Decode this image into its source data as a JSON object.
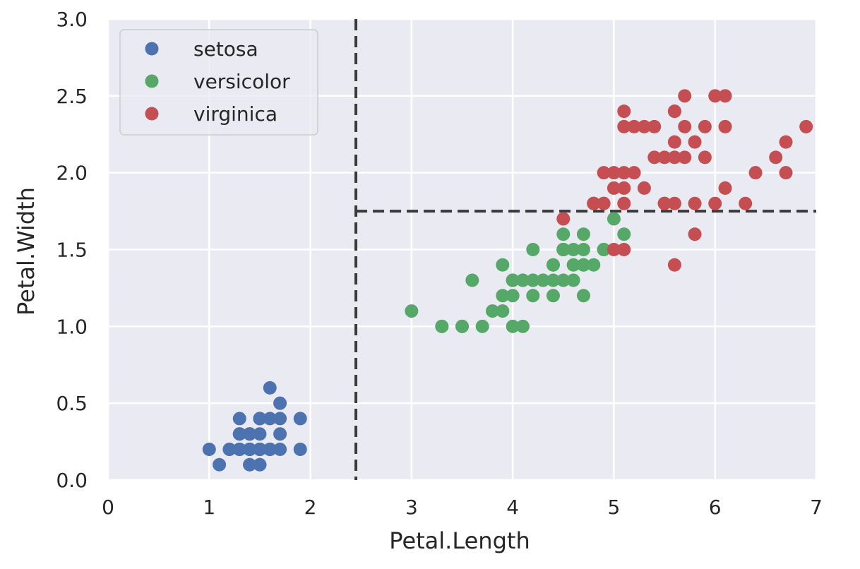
{
  "chart_data": {
    "type": "scatter",
    "xlabel": "Petal.Length",
    "ylabel": "Petal.Width",
    "xlim": [
      0,
      7
    ],
    "ylim": [
      0,
      3
    ],
    "xticks": [
      "0",
      "1",
      "2",
      "3",
      "4",
      "5",
      "6",
      "7"
    ],
    "yticks": [
      "0.0",
      "0.5",
      "1.0",
      "1.5",
      "2.0",
      "2.5",
      "3.0"
    ],
    "grid": true,
    "legend_position": "top-left",
    "series": [
      {
        "name": "setosa",
        "color": "#4c72b0",
        "points": [
          [
            1.4,
            0.2
          ],
          [
            1.4,
            0.2
          ],
          [
            1.3,
            0.2
          ],
          [
            1.5,
            0.2
          ],
          [
            1.4,
            0.2
          ],
          [
            1.7,
            0.4
          ],
          [
            1.4,
            0.3
          ],
          [
            1.5,
            0.2
          ],
          [
            1.4,
            0.2
          ],
          [
            1.5,
            0.1
          ],
          [
            1.5,
            0.2
          ],
          [
            1.6,
            0.2
          ],
          [
            1.4,
            0.1
          ],
          [
            1.1,
            0.1
          ],
          [
            1.2,
            0.2
          ],
          [
            1.5,
            0.4
          ],
          [
            1.3,
            0.4
          ],
          [
            1.4,
            0.3
          ],
          [
            1.7,
            0.3
          ],
          [
            1.5,
            0.3
          ],
          [
            1.7,
            0.2
          ],
          [
            1.5,
            0.4
          ],
          [
            1.0,
            0.2
          ],
          [
            1.7,
            0.5
          ],
          [
            1.9,
            0.2
          ],
          [
            1.6,
            0.2
          ],
          [
            1.6,
            0.4
          ],
          [
            1.5,
            0.2
          ],
          [
            1.4,
            0.2
          ],
          [
            1.6,
            0.2
          ],
          [
            1.6,
            0.2
          ],
          [
            1.5,
            0.4
          ],
          [
            1.5,
            0.1
          ],
          [
            1.4,
            0.2
          ],
          [
            1.5,
            0.2
          ],
          [
            1.2,
            0.2
          ],
          [
            1.3,
            0.2
          ],
          [
            1.4,
            0.1
          ],
          [
            1.3,
            0.2
          ],
          [
            1.5,
            0.2
          ],
          [
            1.3,
            0.3
          ],
          [
            1.3,
            0.3
          ],
          [
            1.3,
            0.2
          ],
          [
            1.6,
            0.6
          ],
          [
            1.9,
            0.4
          ],
          [
            1.4,
            0.3
          ],
          [
            1.6,
            0.2
          ],
          [
            1.4,
            0.2
          ],
          [
            1.5,
            0.2
          ],
          [
            1.4,
            0.2
          ]
        ]
      },
      {
        "name": "versicolor",
        "color": "#55a868",
        "points": [
          [
            4.7,
            1.4
          ],
          [
            4.5,
            1.5
          ],
          [
            4.9,
            1.5
          ],
          [
            4.0,
            1.3
          ],
          [
            4.6,
            1.5
          ],
          [
            4.5,
            1.3
          ],
          [
            4.7,
            1.6
          ],
          [
            3.3,
            1.0
          ],
          [
            4.6,
            1.3
          ],
          [
            3.9,
            1.4
          ],
          [
            3.5,
            1.0
          ],
          [
            4.2,
            1.5
          ],
          [
            4.0,
            1.0
          ],
          [
            4.7,
            1.4
          ],
          [
            3.6,
            1.3
          ],
          [
            4.4,
            1.4
          ],
          [
            4.5,
            1.5
          ],
          [
            4.1,
            1.0
          ],
          [
            4.5,
            1.5
          ],
          [
            3.9,
            1.1
          ],
          [
            4.8,
            1.8
          ],
          [
            4.0,
            1.3
          ],
          [
            4.9,
            1.5
          ],
          [
            4.7,
            1.2
          ],
          [
            4.3,
            1.3
          ],
          [
            4.4,
            1.4
          ],
          [
            4.8,
            1.4
          ],
          [
            5.0,
            1.7
          ],
          [
            4.5,
            1.5
          ],
          [
            3.5,
            1.0
          ],
          [
            3.8,
            1.1
          ],
          [
            3.7,
            1.0
          ],
          [
            3.9,
            1.2
          ],
          [
            5.1,
            1.6
          ],
          [
            4.5,
            1.5
          ],
          [
            4.5,
            1.6
          ],
          [
            4.7,
            1.5
          ],
          [
            4.4,
            1.3
          ],
          [
            4.1,
            1.3
          ],
          [
            4.0,
            1.3
          ],
          [
            4.4,
            1.2
          ],
          [
            4.6,
            1.4
          ],
          [
            4.0,
            1.2
          ],
          [
            3.3,
            1.0
          ],
          [
            4.2,
            1.3
          ],
          [
            4.2,
            1.2
          ],
          [
            4.2,
            1.3
          ],
          [
            4.3,
            1.3
          ],
          [
            3.0,
            1.1
          ],
          [
            4.1,
            1.3
          ]
        ]
      },
      {
        "name": "virginica",
        "color": "#c44e52",
        "points": [
          [
            6.0,
            2.5
          ],
          [
            5.1,
            1.9
          ],
          [
            5.9,
            2.1
          ],
          [
            5.6,
            1.8
          ],
          [
            5.8,
            2.2
          ],
          [
            6.6,
            2.1
          ],
          [
            4.5,
            1.7
          ],
          [
            6.3,
            1.8
          ],
          [
            5.8,
            1.8
          ],
          [
            6.1,
            2.5
          ],
          [
            5.1,
            2.0
          ],
          [
            5.3,
            1.9
          ],
          [
            5.5,
            2.1
          ],
          [
            5.0,
            2.0
          ],
          [
            5.1,
            2.4
          ],
          [
            5.3,
            2.3
          ],
          [
            5.5,
            1.8
          ],
          [
            6.7,
            2.2
          ],
          [
            6.9,
            2.3
          ],
          [
            5.0,
            1.5
          ],
          [
            5.7,
            2.3
          ],
          [
            4.9,
            2.0
          ],
          [
            6.7,
            2.0
          ],
          [
            4.9,
            1.8
          ],
          [
            5.7,
            2.1
          ],
          [
            6.0,
            1.8
          ],
          [
            4.8,
            1.8
          ],
          [
            4.9,
            1.8
          ],
          [
            5.6,
            2.1
          ],
          [
            5.8,
            1.6
          ],
          [
            6.1,
            1.9
          ],
          [
            6.4,
            2.0
          ],
          [
            5.6,
            2.2
          ],
          [
            5.1,
            1.5
          ],
          [
            5.6,
            1.4
          ],
          [
            6.1,
            2.3
          ],
          [
            5.6,
            2.4
          ],
          [
            5.5,
            1.8
          ],
          [
            4.8,
            1.8
          ],
          [
            5.4,
            2.1
          ],
          [
            5.6,
            2.4
          ],
          [
            5.1,
            2.3
          ],
          [
            5.9,
            2.3
          ],
          [
            5.7,
            2.5
          ],
          [
            5.2,
            2.3
          ],
          [
            5.0,
            1.9
          ],
          [
            5.2,
            2.0
          ],
          [
            5.4,
            2.3
          ],
          [
            5.1,
            1.8
          ]
        ]
      }
    ],
    "reference_lines": [
      {
        "orientation": "vertical",
        "x": 2.45,
        "y_from": 0,
        "y_to": 3
      },
      {
        "orientation": "horizontal",
        "y": 1.75,
        "x_from": 2.45,
        "x_to": 7
      }
    ]
  }
}
